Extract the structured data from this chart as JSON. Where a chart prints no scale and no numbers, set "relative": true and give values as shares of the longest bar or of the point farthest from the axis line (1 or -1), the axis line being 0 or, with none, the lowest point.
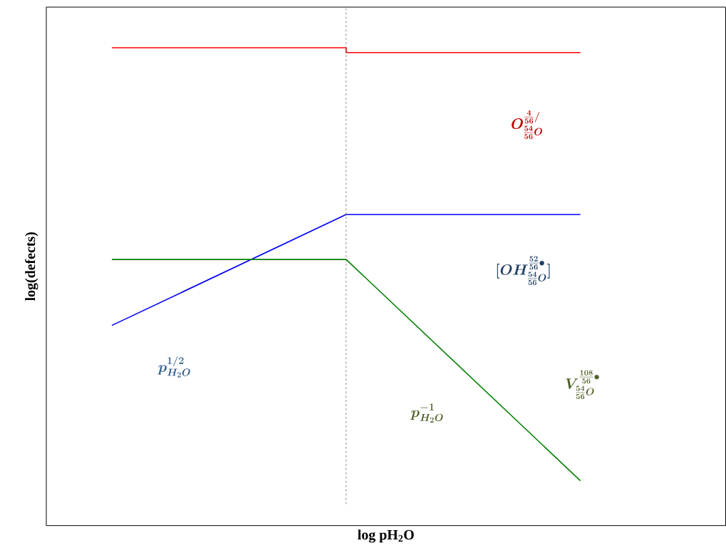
{
  "chart_data": {
    "type": "line",
    "relative": true,
    "xlabel": "log pH$_{2}$O",
    "ylabel": "log(defects)",
    "categories": [
      null,
      null,
      null
    ],
    "series": [
      {
        "color": "#ff0000",
        "type": "step",
        "values": [
          1.0,
          0.99,
          0.99
        ]
      },
      {
        "color": "#0000ff",
        "values": [
          0.419,
          0.651,
          0.651
        ]
      },
      {
        "color": "#008000",
        "values": [
          0.557,
          0.557,
          0.094
        ]
      }
    ],
    "annotations": [
      "O^{\\frac{4}{56}/}_{\\frac{54}{56}O}",
      "[OH^{\\frac{52}{56}\\bullet}_{\\frac{54}{56}O}]",
      "V^{\\frac{108}{56}\\bullet}_{\\frac{54}{56}O}",
      "p^{1/2}_{H_2O}",
      "p^{-1}_{H_2O}"
    ]
  }
}
